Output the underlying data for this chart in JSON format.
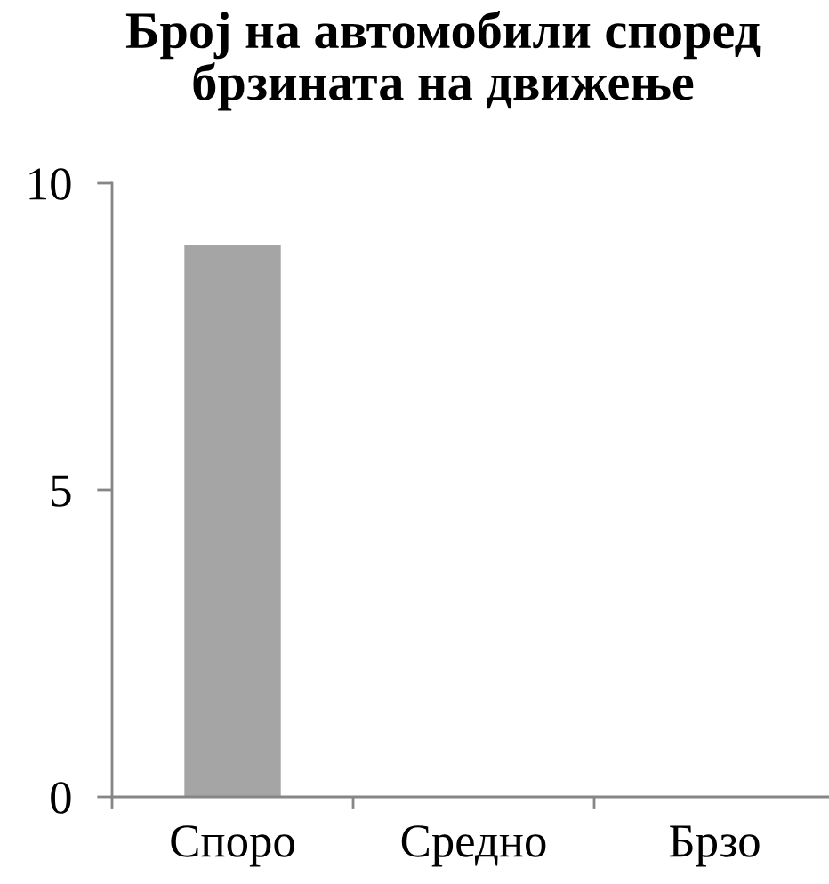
{
  "chart_data": {
    "type": "bar",
    "title": "Број на автомобили според\nбрзината на движење",
    "categories": [
      "Споро",
      "Средно",
      "Брзо"
    ],
    "values": [
      9,
      0,
      0
    ],
    "color": "#a5a5a5",
    "ylim": [
      0,
      10
    ],
    "yticks": [
      0,
      5,
      10
    ],
    "grid": false,
    "legend": false
  }
}
